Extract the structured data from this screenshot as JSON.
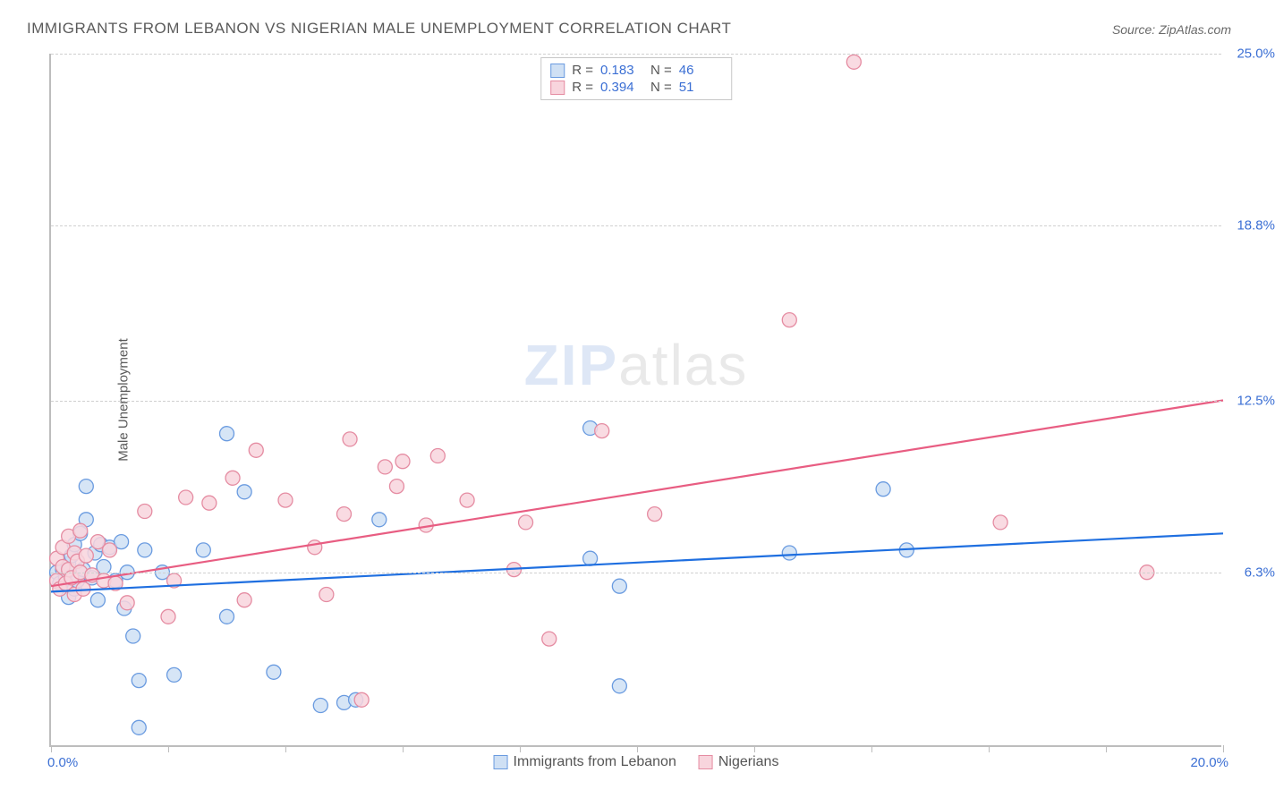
{
  "title": "IMMIGRANTS FROM LEBANON VS NIGERIAN MALE UNEMPLOYMENT CORRELATION CHART",
  "source_label": "Source: ZipAtlas.com",
  "y_axis_label": "Male Unemployment",
  "watermark_a": "ZIP",
  "watermark_b": "atlas",
  "chart": {
    "type": "scatter-with-regression",
    "xlim": [
      0.0,
      20.0
    ],
    "ylim": [
      0.0,
      25.0
    ],
    "x_min_label": "0.0%",
    "x_max_label": "20.0%",
    "y_ticks": [
      {
        "v": 6.3,
        "label": "6.3%"
      },
      {
        "v": 12.5,
        "label": "12.5%"
      },
      {
        "v": 18.8,
        "label": "18.8%"
      },
      {
        "v": 25.0,
        "label": "25.0%"
      }
    ],
    "x_tick_positions": [
      0,
      2,
      4,
      6,
      8,
      10,
      12,
      14,
      16,
      18,
      20
    ],
    "background_color": "#ffffff",
    "grid_color": "#d0d0d0",
    "marker_radius": 8,
    "marker_stroke_width": 1.3,
    "line_width": 2.2
  },
  "series": [
    {
      "key": "lebanon",
      "legend_label": "Immigrants from Lebanon",
      "fill": "#cfe0f4",
      "stroke": "#6a9be0",
      "line_color": "#1f6fe0",
      "R": "0.183",
      "N": "46",
      "regression": {
        "x1": 0.0,
        "y1": 5.6,
        "x2": 20.0,
        "y2": 7.7
      },
      "points": [
        [
          0.1,
          6.3
        ],
        [
          0.15,
          5.9
        ],
        [
          0.2,
          6.4
        ],
        [
          0.25,
          6.1
        ],
        [
          0.3,
          5.4
        ],
        [
          0.3,
          6.6
        ],
        [
          0.35,
          6.9
        ],
        [
          0.4,
          5.7
        ],
        [
          0.4,
          7.3
        ],
        [
          0.45,
          6.0
        ],
        [
          0.5,
          7.7
        ],
        [
          0.55,
          6.4
        ],
        [
          0.6,
          9.4
        ],
        [
          0.6,
          8.2
        ],
        [
          0.7,
          6.1
        ],
        [
          0.75,
          7.0
        ],
        [
          0.8,
          5.3
        ],
        [
          0.85,
          7.3
        ],
        [
          0.9,
          6.5
        ],
        [
          1.0,
          7.2
        ],
        [
          1.1,
          6.0
        ],
        [
          1.2,
          7.4
        ],
        [
          1.25,
          5.0
        ],
        [
          1.3,
          6.3
        ],
        [
          1.4,
          4.0
        ],
        [
          1.5,
          2.4
        ],
        [
          1.5,
          0.7
        ],
        [
          1.6,
          7.1
        ],
        [
          1.9,
          6.3
        ],
        [
          2.1,
          2.6
        ],
        [
          2.6,
          7.1
        ],
        [
          3.0,
          11.3
        ],
        [
          3.0,
          4.7
        ],
        [
          3.3,
          9.2
        ],
        [
          3.8,
          2.7
        ],
        [
          4.6,
          1.5
        ],
        [
          5.0,
          1.6
        ],
        [
          5.2,
          1.7
        ],
        [
          5.6,
          8.2
        ],
        [
          9.2,
          6.8
        ],
        [
          9.2,
          11.5
        ],
        [
          9.7,
          5.8
        ],
        [
          9.7,
          2.2
        ],
        [
          12.6,
          7.0
        ],
        [
          14.2,
          9.3
        ],
        [
          14.6,
          7.1
        ]
      ]
    },
    {
      "key": "nigerians",
      "legend_label": "Nigerians",
      "fill": "#f8d5dd",
      "stroke": "#e58ca2",
      "line_color": "#e85d82",
      "R": "0.394",
      "N": "51",
      "regression": {
        "x1": 0.0,
        "y1": 5.8,
        "x2": 20.0,
        "y2": 12.5
      },
      "points": [
        [
          0.1,
          6.0
        ],
        [
          0.1,
          6.8
        ],
        [
          0.15,
          5.7
        ],
        [
          0.2,
          6.5
        ],
        [
          0.2,
          7.2
        ],
        [
          0.25,
          5.9
        ],
        [
          0.3,
          6.4
        ],
        [
          0.3,
          7.6
        ],
        [
          0.35,
          6.1
        ],
        [
          0.4,
          7.0
        ],
        [
          0.4,
          5.5
        ],
        [
          0.45,
          6.7
        ],
        [
          0.5,
          6.3
        ],
        [
          0.5,
          7.8
        ],
        [
          0.55,
          5.7
        ],
        [
          0.6,
          6.9
        ],
        [
          0.7,
          6.2
        ],
        [
          0.8,
          7.4
        ],
        [
          0.9,
          6.0
        ],
        [
          1.0,
          7.1
        ],
        [
          1.1,
          5.9
        ],
        [
          1.3,
          5.2
        ],
        [
          1.6,
          8.5
        ],
        [
          2.0,
          4.7
        ],
        [
          2.1,
          6.0
        ],
        [
          2.3,
          9.0
        ],
        [
          2.7,
          8.8
        ],
        [
          3.1,
          9.7
        ],
        [
          3.3,
          5.3
        ],
        [
          3.5,
          10.7
        ],
        [
          4.0,
          8.9
        ],
        [
          4.5,
          7.2
        ],
        [
          4.7,
          5.5
        ],
        [
          5.0,
          8.4
        ],
        [
          5.1,
          11.1
        ],
        [
          5.3,
          1.7
        ],
        [
          5.7,
          10.1
        ],
        [
          5.9,
          9.4
        ],
        [
          6.0,
          10.3
        ],
        [
          6.4,
          8.0
        ],
        [
          6.6,
          10.5
        ],
        [
          7.1,
          8.9
        ],
        [
          7.9,
          6.4
        ],
        [
          8.1,
          8.1
        ],
        [
          8.5,
          3.9
        ],
        [
          9.4,
          11.4
        ],
        [
          10.3,
          8.4
        ],
        [
          12.6,
          15.4
        ],
        [
          13.7,
          24.7
        ],
        [
          16.2,
          8.1
        ],
        [
          18.7,
          6.3
        ]
      ]
    }
  ],
  "stat_legend_labels": {
    "R": "R =",
    "N": "N ="
  }
}
